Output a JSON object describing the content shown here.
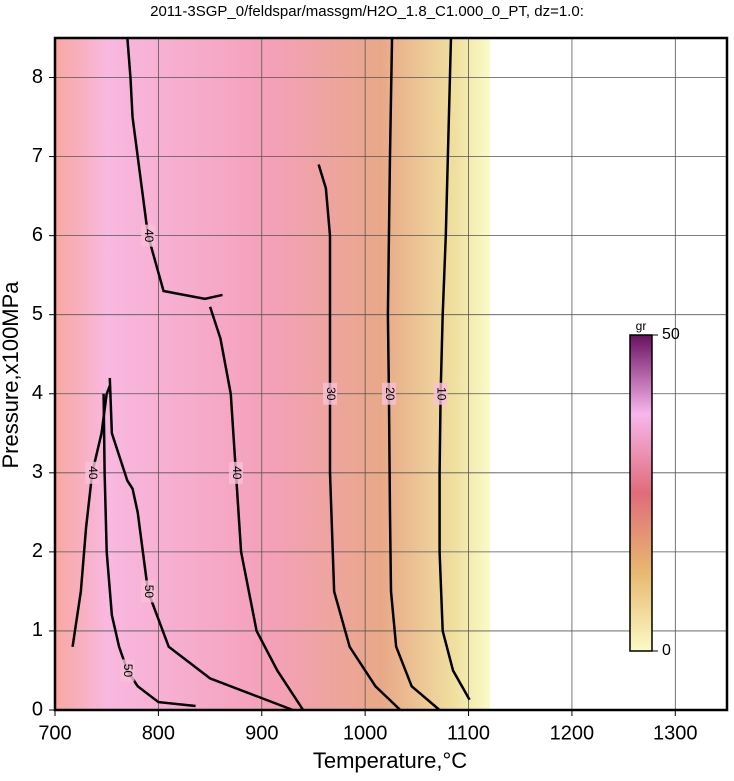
{
  "chart_data": {
    "type": "contour",
    "title": "2011-3SGP_0/feldspar/massgm/H2O_1.8_C1.000_0_PT, dz=1.0:",
    "x_label": "Temperature,°C",
    "y_label": "Pressure,x100MPa",
    "xlim": [
      700,
      1350
    ],
    "xticks": [
      700,
      800,
      900,
      1000,
      1100,
      1200,
      1300
    ],
    "ylim": [
      0,
      8.5
    ],
    "yticks": [
      0,
      1,
      2,
      3,
      4,
      5,
      6,
      7,
      8
    ],
    "grid": true,
    "colorbar": {
      "label": "gr",
      "clim": [
        0,
        50
      ],
      "ticks": [
        0,
        50
      ],
      "colors": [
        "#fbfbc4",
        "#e8b870",
        "#e06c7a",
        "#f8b6ec",
        "#6a1060"
      ]
    },
    "contours": [
      {
        "level": 10,
        "x": [
          1101,
          1085,
          1075,
          1072,
          1072,
          1073,
          1075,
          1078,
          1080,
          1083
        ],
        "values": [
          0.13,
          0.5,
          1,
          2,
          3,
          4,
          5,
          6,
          7,
          8.5
        ]
      },
      {
        "level": 20,
        "x": [
          1072,
          1045,
          1030,
          1025,
          1024,
          1023,
          1022,
          1023,
          1024,
          1026
        ],
        "values": [
          0,
          0.3,
          0.8,
          1.5,
          2.5,
          4,
          5,
          6,
          7,
          8.5
        ]
      },
      {
        "level": 30,
        "x": [
          1034,
          1010,
          985,
          970,
          966,
          966,
          966,
          966,
          962,
          955
        ],
        "values": [
          0,
          0.3,
          0.8,
          1.5,
          3,
          4,
          5,
          6,
          6.6,
          6.9
        ]
      },
      {
        "level": 40,
        "x": [
          940,
          915,
          895,
          880,
          875,
          870,
          860,
          850
        ],
        "values": [
          0,
          0.5,
          1,
          2,
          3,
          4,
          4.7,
          5.1
        ]
      },
      {
        "level": 40,
        "x": [
          770,
          773,
          775,
          780,
          790,
          805,
          845,
          862
        ],
        "values": [
          8.5,
          8,
          7.5,
          7,
          6,
          5.3,
          5.2,
          5.25
        ]
      },
      {
        "level": 40,
        "x": [
          717,
          725,
          730,
          736,
          745,
          750,
          753
        ],
        "values": [
          0.8,
          1.5,
          2.3,
          3,
          3.5,
          4,
          4.1
        ]
      },
      {
        "level": 50,
        "x": [
          747,
          748,
          750,
          755,
          762,
          770,
          780,
          790,
          800,
          836
        ],
        "values": [
          4,
          3,
          2,
          1.2,
          0.8,
          0.5,
          0.3,
          0.2,
          0.1,
          0.05
        ]
      },
      {
        "level": 50,
        "x": [
          753,
          755,
          770,
          775,
          780,
          790,
          810,
          850,
          900,
          930
        ],
        "values": [
          4.2,
          3.5,
          2.9,
          2.8,
          2.5,
          1.5,
          0.8,
          0.4,
          0.15,
          0
        ]
      }
    ]
  }
}
